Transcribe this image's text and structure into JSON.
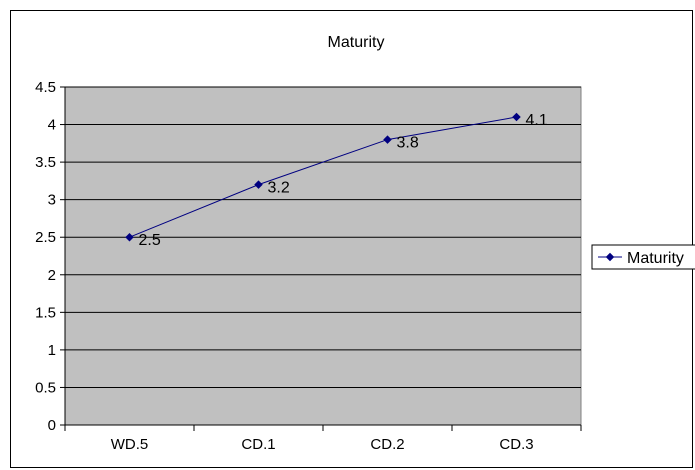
{
  "chart_data": {
    "type": "line",
    "title": "Maturity",
    "categories": [
      "WD.5",
      "CD.1",
      "CD.2",
      "CD.3"
    ],
    "series": [
      {
        "name": "Maturity",
        "values": [
          2.5,
          3.2,
          3.8,
          4.1
        ],
        "data_labels": [
          "2.5",
          "3.2",
          "3.8",
          "4.1"
        ]
      }
    ],
    "ylim": [
      0,
      4.5
    ],
    "yticks": [
      "0",
      "0.5",
      "1",
      "1.5",
      "2",
      "2.5",
      "3",
      "3.5",
      "4",
      "4.5"
    ],
    "xlabel": "",
    "ylabel": "",
    "grid": true,
    "legend": "right",
    "colors": {
      "plot_bg": "#c0c0c0",
      "series": "#000080",
      "grid": "#000000"
    }
  }
}
